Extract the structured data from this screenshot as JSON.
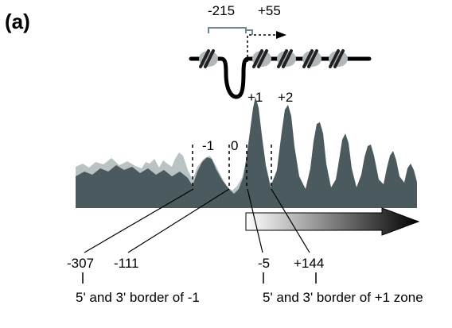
{
  "panel_label": "(a)",
  "promoter": {
    "bracket_label": "-215",
    "tss_label": "+55"
  },
  "nucleosome_labels": {
    "minus1": "-1",
    "zero": "0",
    "plus1": "+1",
    "plus2": "+2"
  },
  "border_positions": [
    {
      "id": "m307",
      "label": "-307"
    },
    {
      "id": "m111",
      "label": "-111"
    },
    {
      "id": "m5",
      "label": "-5"
    },
    {
      "id": "p144",
      "label": "+144"
    }
  ],
  "captions": {
    "left": "5' and 3' border of -1",
    "right": "5' and 3' border of +1 zone"
  },
  "colors": {
    "dark_profile": "#4a5a5e",
    "light_profile": "#b9c3c4",
    "nucleosome": "#b0b8bb",
    "bracket": "#6f8891"
  }
}
